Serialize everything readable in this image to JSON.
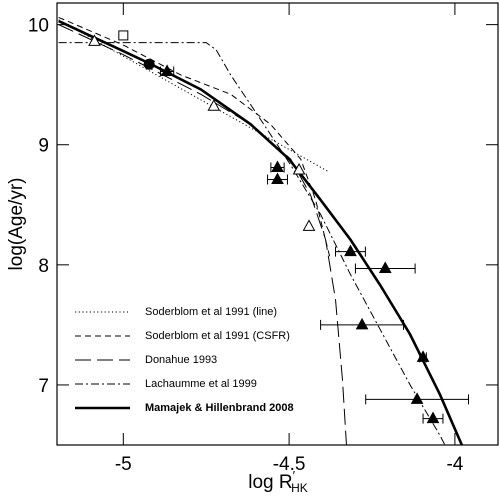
{
  "chart_data": {
    "type": "line",
    "x_label": {
      "text": "log R",
      "prime": "′",
      "subscript": "HK"
    },
    "y_label": "log(Age/yr)",
    "xlim": [
      -5.2,
      -3.87
    ],
    "ylim": [
      6.5,
      10.18
    ],
    "xticks": [
      -5,
      -4.5,
      -4
    ],
    "yticks": [
      7,
      8,
      9,
      10
    ],
    "legend": "lower left",
    "color": "#000000",
    "series": [
      {
        "name": "Soderblom et al 1991 (line)",
        "style": "dotted",
        "x": [
          -5.195,
          -4.384
        ],
        "values": [
          10.04,
          8.78
        ]
      },
      {
        "name": "Soderblom et al 1991 (CSFR)",
        "style": "dashed",
        "x": [
          -5.195,
          -5.0,
          -4.826,
          -4.676,
          -4.556,
          -4.465,
          -4.42,
          -4.375
        ],
        "values": [
          10.06,
          9.83,
          9.58,
          9.42,
          9.17,
          8.88,
          8.54,
          8.04
        ]
      },
      {
        "name": "Donahue 1993",
        "style": "long-dashed",
        "x": [
          -5.195,
          -5.0,
          -4.766,
          -4.616,
          -4.495,
          -4.435,
          -4.39,
          -4.36,
          -4.339,
          -4.327
        ],
        "values": [
          10.0,
          9.75,
          9.42,
          9.17,
          8.88,
          8.58,
          8.21,
          7.71,
          7.04,
          6.5
        ]
      },
      {
        "name": "Lachaumme et al 1999",
        "style": "dash-dot",
        "x": [
          -5.195,
          -4.75,
          -4.72,
          -4.676,
          -4.586,
          -4.495,
          -4.405,
          -4.315,
          -4.225,
          -4.135,
          -4.045,
          -4.03
        ],
        "values": [
          9.85,
          9.85,
          9.79,
          9.58,
          9.21,
          8.83,
          8.42,
          7.92,
          7.46,
          7.0,
          6.58,
          6.5
        ]
      },
      {
        "name": "Mamajek & Hillenbrand 2008",
        "style": "thick",
        "x": [
          -5.195,
          -5.0,
          -4.916,
          -4.766,
          -4.616,
          -4.5,
          -4.405,
          -4.315,
          -4.225,
          -4.135,
          -4.045,
          -3.979
        ],
        "values": [
          10.03,
          9.78,
          9.67,
          9.46,
          9.17,
          8.88,
          8.54,
          8.21,
          7.83,
          7.42,
          6.92,
          6.5
        ]
      }
    ],
    "points": [
      {
        "marker": "open-triangle",
        "x": [
          -5.087,
          -4.727,
          -4.47,
          -4.44
        ],
        "values": [
          9.86,
          9.32,
          8.79,
          8.32
        ]
      },
      {
        "marker": "open-square",
        "x": [
          -5.0
        ],
        "values": [
          9.91
        ]
      },
      {
        "marker": "filled-circle",
        "x": [
          -4.922
        ],
        "values": [
          9.67
        ]
      },
      {
        "marker": "filled-triangle",
        "x": [
          -4.868,
          -4.535,
          -4.535,
          -4.315,
          -4.21,
          -4.28,
          -4.096,
          -4.114,
          -4.066
        ],
        "values": [
          9.61,
          8.81,
          8.71,
          8.11,
          7.97,
          7.5,
          7.23,
          6.88,
          6.72
        ],
        "xerr": [
          0.02,
          0.02,
          0.03,
          0.045,
          0.09,
          0.125,
          0.01,
          0.155,
          0.03
        ]
      }
    ]
  }
}
